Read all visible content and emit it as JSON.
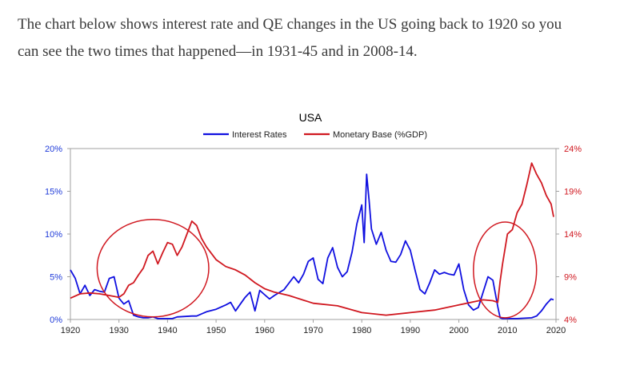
{
  "intro": {
    "line1": "The chart below shows interest rate and QE changes in the US going back to 1920 so you",
    "line2": "can see the two times that happened—in 1931-45 and in 2008-14."
  },
  "chart_data": {
    "type": "line",
    "title": "USA",
    "legend_placement": "top",
    "grid": false,
    "x_ticks": [
      "1920",
      "1930",
      "1940",
      "1950",
      "1960",
      "1970",
      "1980",
      "1990",
      "2000",
      "2010",
      "2020"
    ],
    "xlim": [
      1920,
      2020
    ],
    "y_left": {
      "ticks": [
        "0%",
        "5%",
        "10%",
        "15%",
        "20%"
      ],
      "lim": [
        0,
        20
      ],
      "color": "#1f3bd9"
    },
    "y_right": {
      "ticks": [
        "4%",
        "9%",
        "14%",
        "19%",
        "24%"
      ],
      "lim": [
        4,
        24
      ],
      "color": "#d01820"
    },
    "series": [
      {
        "name": "Interest Rates",
        "axis": "left",
        "color": "#1010e0",
        "x": [
          1920,
          1921,
          1922,
          1923,
          1924,
          1925,
          1926,
          1927,
          1928,
          1929,
          1930,
          1931,
          1932,
          1933,
          1934,
          1935,
          1936,
          1937,
          1938,
          1939,
          1940,
          1941,
          1942,
          1945,
          1946,
          1948,
          1950,
          1952,
          1953,
          1954,
          1955,
          1956,
          1957,
          1958,
          1959,
          1960,
          1961,
          1962,
          1964,
          1966,
          1967,
          1968,
          1969,
          1970,
          1971,
          1972,
          1973,
          1974,
          1975,
          1976,
          1977,
          1978,
          1979,
          1980,
          1980.5,
          1981,
          1981.5,
          1982,
          1983,
          1984,
          1985,
          1986,
          1987,
          1988,
          1989,
          1990,
          1991,
          1992,
          1993,
          1994,
          1995,
          1996,
          1997,
          1998,
          1999,
          2000,
          2001,
          2002,
          2003,
          2004,
          2005,
          2006,
          2007,
          2008,
          2008.5,
          2009,
          2012,
          2015,
          2016,
          2017,
          2018,
          2019,
          2019.5
        ],
        "y": [
          5.8,
          4.8,
          3.0,
          4.0,
          2.8,
          3.5,
          3.3,
          3.2,
          4.8,
          5.0,
          2.5,
          1.8,
          2.2,
          0.5,
          0.3,
          0.2,
          0.2,
          0.3,
          0.1,
          0.1,
          0.1,
          0.1,
          0.3,
          0.4,
          0.4,
          0.9,
          1.2,
          1.7,
          2.0,
          1.0,
          1.8,
          2.6,
          3.2,
          1.0,
          3.4,
          2.9,
          2.4,
          2.8,
          3.5,
          5.0,
          4.3,
          5.3,
          6.8,
          7.2,
          4.7,
          4.2,
          7.2,
          8.4,
          6.1,
          5.0,
          5.6,
          7.9,
          11.2,
          13.4,
          9.0,
          17.0,
          14.0,
          10.6,
          8.8,
          10.2,
          8.1,
          6.8,
          6.7,
          7.6,
          9.2,
          8.1,
          5.7,
          3.5,
          3.0,
          4.3,
          5.8,
          5.3,
          5.5,
          5.3,
          5.2,
          6.5,
          3.5,
          1.7,
          1.1,
          1.4,
          3.2,
          5.0,
          4.6,
          1.5,
          0.2,
          0.1,
          0.1,
          0.2,
          0.4,
          1.0,
          1.8,
          2.4,
          2.3
        ]
      },
      {
        "name": "Monetary Base (%GDP)",
        "axis": "right",
        "color": "#d01820",
        "x": [
          1920,
          1922,
          1924,
          1926,
          1928,
          1930,
          1931,
          1932,
          1933,
          1934,
          1935,
          1936,
          1937,
          1938,
          1939,
          1940,
          1941,
          1942,
          1943,
          1944,
          1945,
          1946,
          1947,
          1948,
          1950,
          1952,
          1954,
          1956,
          1958,
          1960,
          1962,
          1965,
          1970,
          1975,
          1980,
          1985,
          1990,
          1995,
          2000,
          2005,
          2007,
          2008,
          2008.5,
          2009,
          2010,
          2011,
          2012,
          2013,
          2014,
          2015,
          2016,
          2017,
          2018,
          2019,
          2019.5
        ],
        "y": [
          6.5,
          7.0,
          7.1,
          7.0,
          6.8,
          6.6,
          7.0,
          8.0,
          8.3,
          9.2,
          10.0,
          11.5,
          12.0,
          10.5,
          11.8,
          13.0,
          12.8,
          11.5,
          12.5,
          14.0,
          15.5,
          15.0,
          13.5,
          12.5,
          11.0,
          10.2,
          9.8,
          9.2,
          8.3,
          7.6,
          7.2,
          6.8,
          5.9,
          5.6,
          4.8,
          4.5,
          4.8,
          5.1,
          5.7,
          6.3,
          6.2,
          6.0,
          8.5,
          10.5,
          14.0,
          14.5,
          16.5,
          17.5,
          19.8,
          22.3,
          21.0,
          20.0,
          18.5,
          17.5,
          16.0
        ]
      }
    ],
    "annotations": [
      {
        "shape": "ellipse",
        "cx": 1937,
        "cy": 6,
        "rx": 11.5,
        "ry": 5.7,
        "axis": "left",
        "color": "#d01820"
      },
      {
        "shape": "ellipse",
        "cx": 2009.5,
        "cy": 5.8,
        "rx": 6.5,
        "ry": 5.6,
        "axis": "left",
        "color": "#d01820"
      }
    ]
  }
}
